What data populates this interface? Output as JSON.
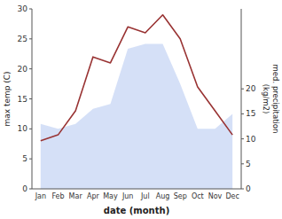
{
  "chart_data": {
    "type": "line",
    "categories": [
      "Jan",
      "Feb",
      "Mar",
      "Apr",
      "May",
      "Jun",
      "Jul",
      "Aug",
      "Sep",
      "Oct",
      "Nov",
      "Dec"
    ],
    "xlabel": "date (month)",
    "ylabel": "max temp (C)",
    "y2label": "med. precipitation\n(kg/m2)",
    "series": [
      {
        "type": "area",
        "axis": "y2",
        "color": "#b3c6f0",
        "values": [
          13,
          12,
          13,
          16,
          17,
          28,
          29,
          29,
          21,
          12,
          12,
          15
        ]
      },
      {
        "type": "line",
        "color": "#993333",
        "values": [
          8,
          9,
          13,
          22,
          21,
          27,
          26,
          29,
          25,
          17,
          13,
          9
        ]
      }
    ],
    "ylim": [
      0,
      30
    ],
    "yticks": [
      0,
      5,
      10,
      15,
      20,
      25,
      30
    ],
    "y2lim": [
      0,
      36
    ],
    "y2ticks": [
      0,
      5,
      10,
      15,
      20
    ]
  }
}
